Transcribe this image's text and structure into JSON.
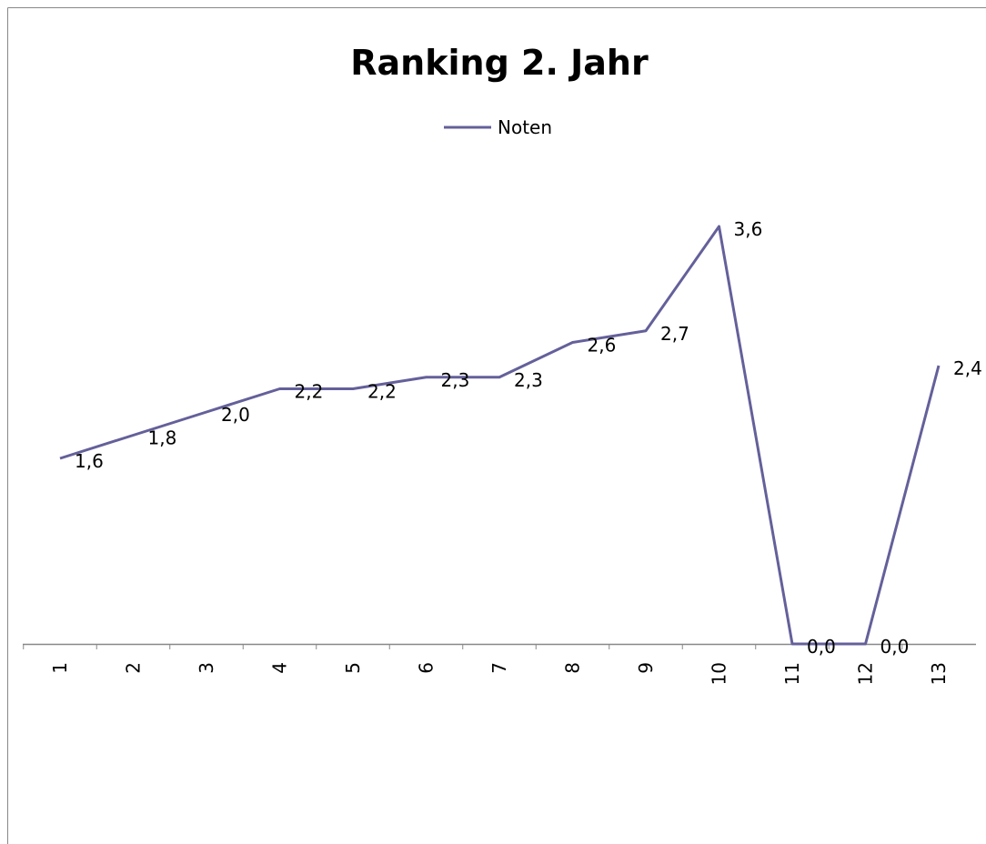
{
  "chart_data": {
    "type": "line",
    "title": "Ranking 2. Jahr",
    "categories": [
      "1",
      "2",
      "3",
      "4",
      "5",
      "6",
      "7",
      "8",
      "9",
      "10",
      "11",
      "12",
      "13"
    ],
    "series": [
      {
        "name": "Noten",
        "color": "#64609a",
        "values": [
          1.6,
          1.8,
          2.0,
          2.2,
          2.2,
          2.3,
          2.3,
          2.6,
          2.7,
          3.6,
          0,
          0,
          2.4
        ],
        "value_labels": [
          "1,6",
          "1,8",
          "2,0",
          "2,2",
          "2,2",
          "2,3",
          "2,3",
          "2,6",
          "2,7",
          "3,6",
          "0,0",
          "0,0",
          "2,4"
        ]
      }
    ],
    "ylim": [
      0,
      4
    ],
    "legend": "top"
  }
}
